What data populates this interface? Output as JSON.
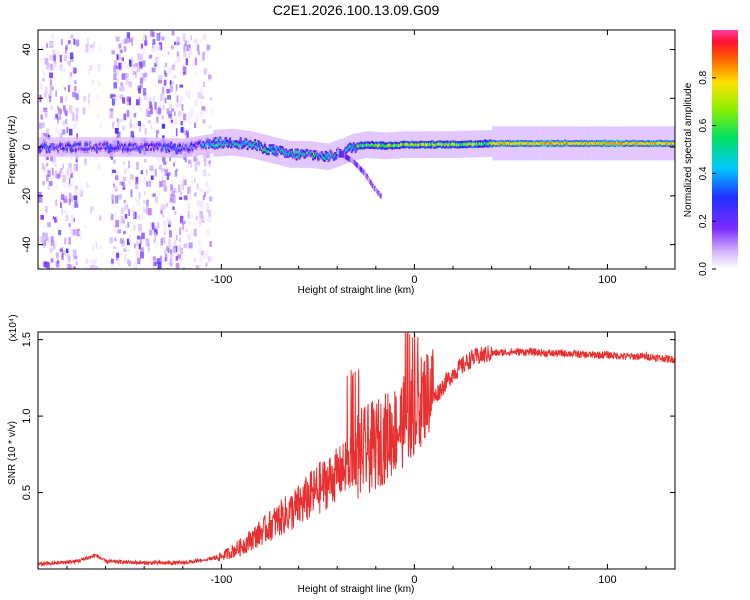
{
  "title": "C2E1.2026.100.13.09.G09",
  "chart_data": [
    {
      "type": "heatmap",
      "title": "C2E1.2026.100.13.09.G09",
      "xlabel": "Height of straight line (km)",
      "ylabel": "Frequency (Hz)",
      "xlim": [
        -195,
        135
      ],
      "ylim": [
        -50,
        48
      ],
      "xticks": [
        -100,
        0,
        100
      ],
      "xtick_labels": [
        "-100",
        "0",
        "100"
      ],
      "yticks": [
        -40,
        -20,
        0,
        20,
        40
      ],
      "ytick_labels": [
        "-40",
        "-20",
        "0",
        "20",
        "40"
      ],
      "colorbar": {
        "label": "Normalized spectral amplitude",
        "range": [
          0,
          1
        ],
        "ticks": [
          0.0,
          0.2,
          0.4,
          0.6,
          0.8
        ],
        "tick_labels": [
          "0.0",
          "0.2",
          "0.4",
          "0.6",
          "0.8"
        ]
      },
      "track": [
        {
          "x": -195,
          "f": 0
        },
        {
          "x": -160,
          "f": 0
        },
        {
          "x": -140,
          "f": 0
        },
        {
          "x": -120,
          "f": -0.5
        },
        {
          "x": -105,
          "f": 1.5
        },
        {
          "x": -95,
          "f": 2
        },
        {
          "x": -85,
          "f": 1
        },
        {
          "x": -75,
          "f": -1
        },
        {
          "x": -65,
          "f": -3
        },
        {
          "x": -55,
          "f": -3
        },
        {
          "x": -45,
          "f": -4
        },
        {
          "x": -38,
          "f": -2
        },
        {
          "x": -32,
          "f": 0
        },
        {
          "x": -25,
          "f": 1
        },
        {
          "x": -15,
          "f": 0.5
        },
        {
          "x": -5,
          "f": 1
        },
        {
          "x": 5,
          "f": 1
        },
        {
          "x": 20,
          "f": 1
        },
        {
          "x": 40,
          "f": 1.5
        },
        {
          "x": 60,
          "f": 1.5
        },
        {
          "x": 80,
          "f": 1.5
        },
        {
          "x": 100,
          "f": 1.5
        },
        {
          "x": 120,
          "f": 1.5
        },
        {
          "x": 135,
          "f": 1.5
        }
      ],
      "branch": [
        {
          "x": -40,
          "f": -2
        },
        {
          "x": -32,
          "f": -6
        },
        {
          "x": -26,
          "f": -11
        },
        {
          "x": -22,
          "f": -16
        },
        {
          "x": -18,
          "f": -20
        }
      ]
    },
    {
      "type": "line",
      "xlabel": "Height of straight line (km)",
      "ylabel": "SNR (10 * v/v)",
      "y_scale_label": "(x10⁴)",
      "xlim": [
        -195,
        135
      ],
      "ylim": [
        0,
        1.55
      ],
      "xticks": [
        -100,
        0,
        100
      ],
      "xtick_labels": [
        "-100",
        "0",
        "100"
      ],
      "yticks": [
        0.5,
        1.0,
        1.5
      ],
      "ytick_labels": [
        "0.5",
        "1.0",
        "1.5"
      ],
      "series": [
        {
          "name": "SNR",
          "color": "#e83030",
          "x": [
            -195,
            -175,
            -165,
            -160,
            -140,
            -120,
            -100,
            -90,
            -80,
            -70,
            -60,
            -50,
            -40,
            -30,
            -20,
            -10,
            -5,
            0,
            10,
            20,
            30,
            40,
            50,
            60,
            70,
            80,
            90,
            100,
            110,
            120,
            135
          ],
          "y": [
            0.03,
            0.05,
            0.09,
            0.05,
            0.04,
            0.04,
            0.07,
            0.12,
            0.2,
            0.28,
            0.35,
            0.45,
            0.55,
            0.65,
            0.72,
            0.82,
            0.88,
            0.95,
            1.12,
            1.28,
            1.38,
            1.41,
            1.42,
            1.42,
            1.41,
            1.41,
            1.4,
            1.4,
            1.39,
            1.39,
            1.37
          ]
        }
      ]
    }
  ]
}
